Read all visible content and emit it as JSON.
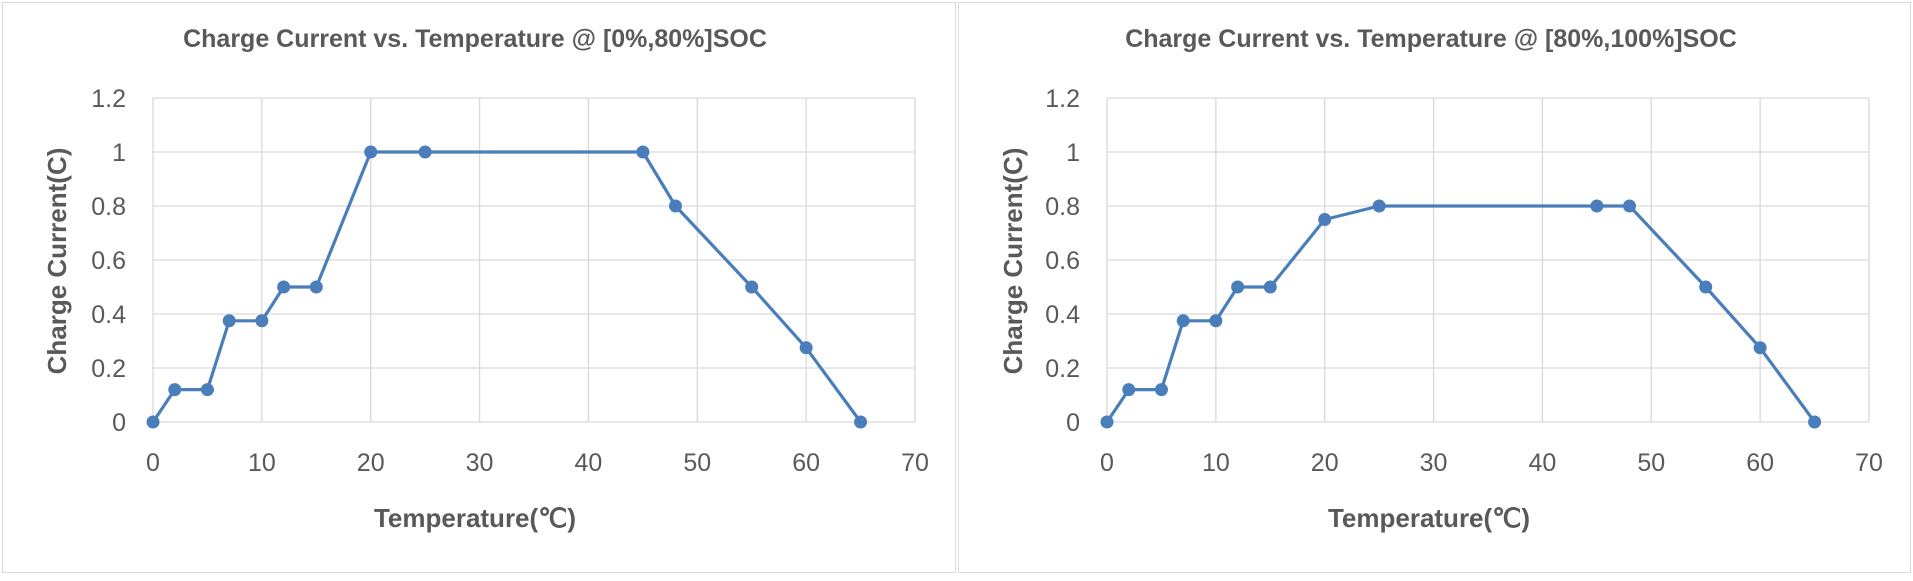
{
  "chart_data": [
    {
      "type": "line",
      "title": "Charge Current vs. Temperature @ [0%,80%]SOC",
      "xlabel": "Temperature(℃)",
      "ylabel": "Charge Current(C)",
      "xlim": [
        0,
        70
      ],
      "ylim": [
        0,
        1.2
      ],
      "xticks": [
        "0",
        "10",
        "20",
        "30",
        "40",
        "50",
        "60",
        "70"
      ],
      "yticks": [
        "0",
        "0.2",
        "0.4",
        "0.6",
        "0.8",
        "1",
        "1.2"
      ],
      "grid": true,
      "legend": "none",
      "series": [
        {
          "color": "#4a7ebb",
          "x": [
            0,
            2,
            5,
            7,
            10,
            12,
            15,
            20,
            25,
            45,
            48,
            55,
            60,
            65
          ],
          "y": [
            0,
            0.12,
            0.12,
            0.375,
            0.375,
            0.5,
            0.5,
            1,
            1,
            1,
            0.8,
            0.5,
            0.275,
            0
          ]
        }
      ]
    },
    {
      "type": "line",
      "title": "Charge Current vs. Temperature @ [80%,100%]SOC",
      "xlabel": "Temperature(℃)",
      "ylabel": "Charge Current(C)",
      "xlim": [
        0,
        70
      ],
      "ylim": [
        0,
        1.2
      ],
      "xticks": [
        "0",
        "10",
        "20",
        "30",
        "40",
        "50",
        "60",
        "70"
      ],
      "yticks": [
        "0",
        "0.2",
        "0.4",
        "0.6",
        "0.8",
        "1",
        "1.2"
      ],
      "grid": true,
      "legend": "none",
      "series": [
        {
          "color": "#4a7ebb",
          "x": [
            0,
            2,
            5,
            7,
            10,
            12,
            15,
            20,
            25,
            45,
            48,
            55,
            60,
            65
          ],
          "y": [
            0,
            0.12,
            0.12,
            0.375,
            0.375,
            0.5,
            0.5,
            0.75,
            0.8,
            0.8,
            0.8,
            0.5,
            0.275,
            0
          ]
        }
      ]
    }
  ]
}
